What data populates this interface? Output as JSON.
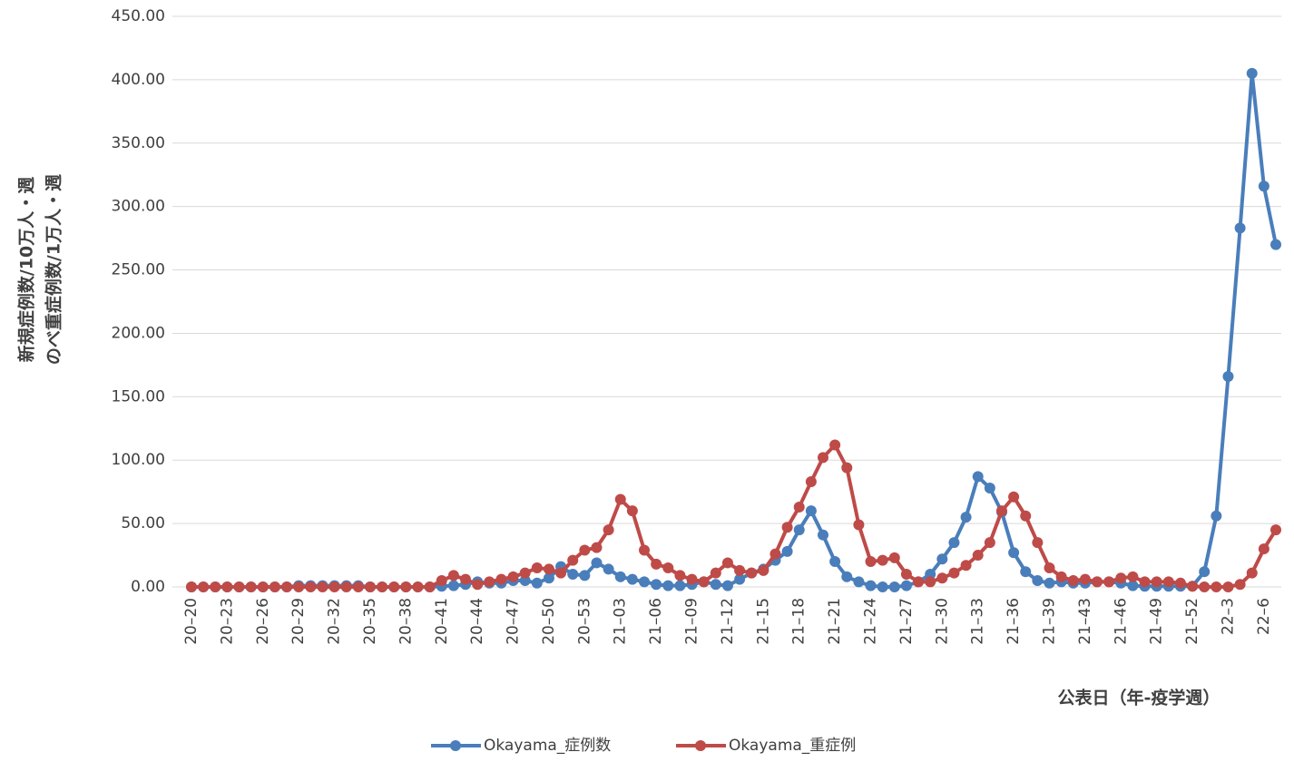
{
  "chart_data": {
    "type": "line",
    "y_label_lines": [
      "新規症例数/10万人・週",
      "のべ重症例数/1万人・週"
    ],
    "x_label": "公表日（年-疫学週）",
    "categories": [
      "20–20",
      null,
      null,
      "20–23",
      null,
      null,
      "20–26",
      null,
      null,
      "20–29",
      null,
      null,
      "20–32",
      null,
      null,
      "20–35",
      null,
      null,
      "20–38",
      null,
      null,
      "20–41",
      null,
      null,
      "20–44",
      null,
      null,
      "20–47",
      null,
      null,
      "20–50",
      null,
      null,
      "20–53",
      null,
      null,
      "21–03",
      null,
      null,
      "21–06",
      null,
      null,
      "21–09",
      null,
      null,
      "21–12",
      null,
      null,
      "21–15",
      null,
      null,
      "21–18",
      null,
      null,
      "21–21",
      null,
      null,
      "21–24",
      null,
      null,
      "21–27",
      null,
      null,
      "21–30",
      null,
      null,
      "21–33",
      null,
      null,
      "21–36",
      null,
      null,
      "21–39",
      null,
      null,
      "21–43",
      null,
      null,
      "21–46",
      null,
      null,
      "21–49",
      null,
      null,
      "21–52",
      null,
      null,
      "22–3",
      null,
      null,
      "22–6",
      null
    ],
    "series": [
      {
        "name": "Okayama_症例数",
        "color": "#4a7ebb",
        "values": [
          0,
          0,
          0,
          0,
          0,
          0,
          0,
          0,
          0,
          1,
          1,
          1,
          1,
          1,
          1,
          0,
          0,
          0,
          0,
          0,
          0,
          0.5,
          1,
          2,
          4,
          3,
          3,
          5,
          5,
          3,
          7,
          16,
          10,
          9,
          19,
          14,
          8,
          6,
          4,
          2,
          1,
          1,
          2,
          4,
          2,
          1,
          6,
          11,
          14,
          21,
          28,
          45,
          60,
          41,
          20,
          8,
          4,
          1,
          0,
          0,
          1,
          4,
          10,
          22,
          35,
          55,
          87,
          78,
          59,
          27,
          12,
          5,
          3,
          4,
          3,
          3,
          4,
          4,
          3,
          1,
          0.5,
          0.5,
          0.5,
          0.5,
          0.5,
          12,
          56,
          166,
          283,
          405,
          316,
          270
        ]
      },
      {
        "name": "Okayama_重症例",
        "color": "#be4b48",
        "values": [
          0,
          0,
          0,
          0,
          0,
          0,
          0,
          0,
          0,
          0,
          0,
          0,
          0,
          0,
          0,
          0,
          0,
          0,
          0,
          0,
          0,
          5,
          9,
          6,
          2,
          4,
          6,
          8,
          11,
          15,
          14,
          11,
          21,
          29,
          31,
          45,
          69,
          60,
          29,
          18,
          15,
          9,
          6,
          4,
          11,
          19,
          13,
          11,
          13,
          26,
          47,
          63,
          83,
          102,
          112,
          94,
          49,
          20,
          21,
          23,
          10,
          4,
          4,
          7,
          11,
          17,
          25,
          35,
          60,
          71,
          56,
          35,
          15,
          8,
          5,
          6,
          4,
          4,
          7,
          8,
          4,
          4,
          4,
          3,
          0.5,
          0,
          0,
          0,
          2,
          11,
          30,
          45
        ]
      }
    ],
    "ylim": [
      0,
      450
    ],
    "yticks": [
      {
        "value": 0,
        "label": "0.00"
      },
      {
        "value": 50,
        "label": "50.00"
      },
      {
        "value": 100,
        "label": "100.00"
      },
      {
        "value": 150,
        "label": "150.00"
      },
      {
        "value": 200,
        "label": "200.00"
      },
      {
        "value": 250,
        "label": "250.00"
      },
      {
        "value": 300,
        "label": "300.00"
      },
      {
        "value": 350,
        "label": "350.00"
      },
      {
        "value": 400,
        "label": "400.00"
      },
      {
        "value": 450,
        "label": "450.00"
      }
    ],
    "grid": true,
    "legend": "bottom"
  }
}
